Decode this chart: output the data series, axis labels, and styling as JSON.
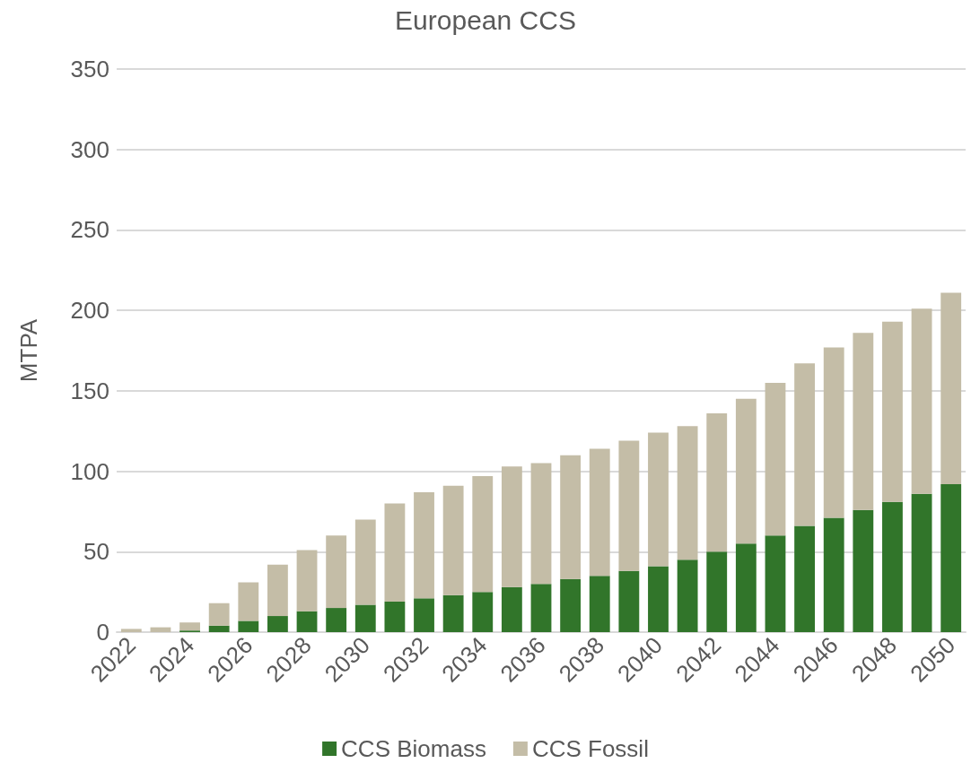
{
  "chart_data": {
    "type": "bar",
    "title": "European CCS",
    "ylabel": "MTPA",
    "stacked": true,
    "grid": "y",
    "legend": "bottom",
    "categories": [
      "2022",
      null,
      "2024",
      null,
      "2026",
      null,
      "2028",
      null,
      "2030",
      null,
      "2032",
      null,
      "2034",
      null,
      "2036",
      null,
      "2038",
      null,
      "2040",
      null,
      "2042",
      null,
      "2044",
      null,
      "2046",
      null,
      "2048",
      null,
      "2050"
    ],
    "ylim": [
      0,
      350
    ],
    "yticks": [
      0,
      50,
      100,
      150,
      200,
      250,
      300,
      350
    ],
    "series": [
      {
        "name": "CCS Biomass",
        "color": "#31752a",
        "values": [
          0,
          0,
          1,
          4,
          7,
          10,
          13,
          15,
          17,
          19,
          21,
          23,
          25,
          28,
          30,
          33,
          35,
          38,
          41,
          45,
          50,
          55,
          60,
          66,
          71,
          76,
          81,
          86,
          92
        ]
      },
      {
        "name": "CCS Fossil",
        "color": "#c4bda7",
        "values": [
          2,
          3,
          5,
          14,
          24,
          32,
          38,
          45,
          53,
          61,
          66,
          68,
          72,
          75,
          75,
          77,
          79,
          81,
          83,
          83,
          86,
          90,
          95,
          101,
          106,
          110,
          112,
          115,
          119
        ]
      }
    ]
  }
}
